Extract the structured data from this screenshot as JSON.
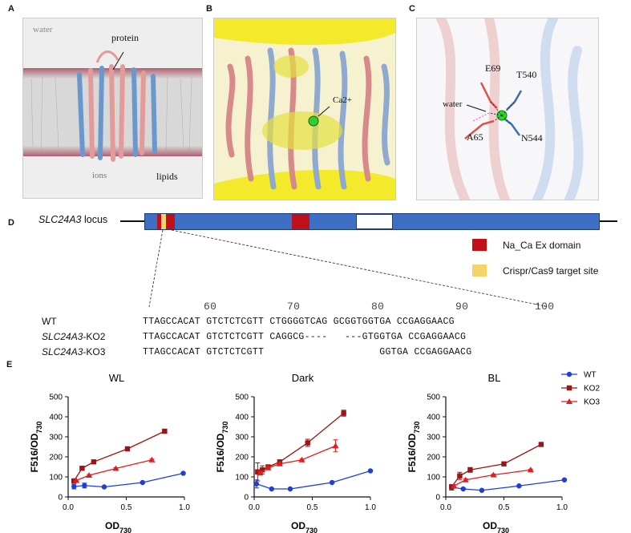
{
  "panels": {
    "a": {
      "letter": "A",
      "labels": {
        "water": "water",
        "protein": "protein",
        "ions": "ions",
        "lipids": "lipids"
      }
    },
    "b": {
      "letter": "B",
      "labels": {
        "ion": "Ca2+"
      }
    },
    "c": {
      "letter": "C",
      "labels": {
        "e69": "E69",
        "t540": "T540",
        "water": "water",
        "a65": "A65",
        "n544": "N544"
      }
    },
    "d": {
      "letter": "D",
      "locus_italic": "SLC24A3",
      "locus_suffix": " locus",
      "legend": [
        {
          "label": "Na_Ca Ex domain",
          "color": "#c0101a"
        },
        {
          "label": "Crispr/Cas9 target site",
          "color": "#f4d36a"
        }
      ],
      "bar_color": "#3f6fc4",
      "ruler": [
        "60",
        "70",
        "80",
        "90",
        "100"
      ],
      "sequences": [
        {
          "name_italic": "",
          "name_suffix": "WT",
          "seq": "TTAGCCACAT GTCTCTCGTT CTGGGGTCAG GCGGTGGTGA CCGAGGAACG"
        },
        {
          "name_italic": "SLC24A3",
          "name_suffix": "-KO2",
          "seq": "TTAGCCACAT GTCTCTCGTT CAGGCG----   ---GTGGTGA CCGAGGAACG"
        },
        {
          "name_italic": "SLC24A3",
          "name_suffix": "-KO3",
          "seq": "TTAGCCACAT GTCTCTCGTT                    GGTGA CCGAGGAACG"
        }
      ]
    },
    "e": {
      "letter": "E"
    }
  },
  "chart_data": [
    {
      "type": "line",
      "title": "WL",
      "xlabel": "OD730",
      "ylabel": "F516/OD730",
      "xlim": [
        0,
        1.0
      ],
      "ylim": [
        0,
        500
      ],
      "xticks": [
        "0.0",
        "0.5",
        "1.0"
      ],
      "yticks": [
        "0",
        "100",
        "200",
        "300",
        "400",
        "500"
      ],
      "series": [
        {
          "name": "WT",
          "color": "#1f3fd6",
          "marker": "circle",
          "x": [
            0.05,
            0.14,
            0.31,
            0.64,
            0.99
          ],
          "y": [
            52,
            57,
            50,
            72,
            118
          ],
          "err": [
            12,
            12,
            4,
            4,
            4
          ]
        },
        {
          "name": "KO2",
          "color": "#9c1414",
          "marker": "square",
          "x": [
            0.05,
            0.12,
            0.22,
            0.51,
            0.83
          ],
          "y": [
            80,
            143,
            175,
            240,
            328
          ],
          "err": [
            4,
            4,
            4,
            4,
            4
          ]
        },
        {
          "name": "KO3",
          "color": "#e01e1e",
          "marker": "triangle",
          "x": [
            0.07,
            0.18,
            0.41,
            0.72
          ],
          "y": [
            82,
            108,
            142,
            185
          ],
          "err": [
            4,
            4,
            4,
            4
          ]
        }
      ]
    },
    {
      "type": "line",
      "title": "Dark",
      "xlabel": "OD730",
      "ylabel": "F516/OD730",
      "xlim": [
        0,
        1.0
      ],
      "ylim": [
        0,
        500
      ],
      "xticks": [
        "0.0",
        "0.5",
        "1.0"
      ],
      "yticks": [
        "0",
        "100",
        "200",
        "300",
        "400",
        "500"
      ],
      "series": [
        {
          "name": "WT",
          "color": "#1f3fd6",
          "marker": "circle",
          "x": [
            0.02,
            0.15,
            0.31,
            0.67,
            1.0
          ],
          "y": [
            65,
            40,
            40,
            72,
            130
          ],
          "err": [
            20,
            4,
            4,
            4,
            4
          ]
        },
        {
          "name": "KO2",
          "color": "#9c1414",
          "marker": "square",
          "x": [
            0.03,
            0.07,
            0.12,
            0.22,
            0.46,
            0.77
          ],
          "y": [
            125,
            135,
            150,
            175,
            270,
            418
          ],
          "err": [
            45,
            20,
            10,
            8,
            18,
            15
          ]
        },
        {
          "name": "KO3",
          "color": "#e01e1e",
          "marker": "triangle",
          "x": [
            0.05,
            0.12,
            0.22,
            0.41,
            0.7
          ],
          "y": [
            120,
            145,
            165,
            185,
            255
          ],
          "err": [
            8,
            6,
            5,
            4,
            30
          ]
        }
      ]
    },
    {
      "type": "line",
      "title": "BL",
      "xlabel": "OD730",
      "ylabel": "F516/OD730",
      "xlim": [
        0,
        1.0
      ],
      "ylim": [
        0,
        500
      ],
      "xticks": [
        "0.0",
        "0.5",
        "1.0"
      ],
      "yticks": [
        "0",
        "100",
        "200",
        "300",
        "400",
        "500"
      ],
      "legend_position": "top-right",
      "series": [
        {
          "name": "WT",
          "color": "#1f3fd6",
          "marker": "circle",
          "x": [
            0.05,
            0.15,
            0.31,
            0.63,
            1.02
          ],
          "y": [
            48,
            40,
            33,
            55,
            85
          ],
          "err": [
            14,
            4,
            4,
            4,
            4
          ]
        },
        {
          "name": "KO2",
          "color": "#9c1414",
          "marker": "square",
          "x": [
            0.05,
            0.12,
            0.21,
            0.5,
            0.82
          ],
          "y": [
            50,
            105,
            135,
            165,
            262
          ],
          "err": [
            10,
            18,
            12,
            4,
            4
          ]
        },
        {
          "name": "KO3",
          "color": "#e01e1e",
          "marker": "triangle",
          "x": [
            0.07,
            0.17,
            0.41,
            0.73
          ],
          "y": [
            55,
            85,
            110,
            135
          ],
          "err": [
            6,
            6,
            4,
            4
          ]
        }
      ]
    }
  ]
}
